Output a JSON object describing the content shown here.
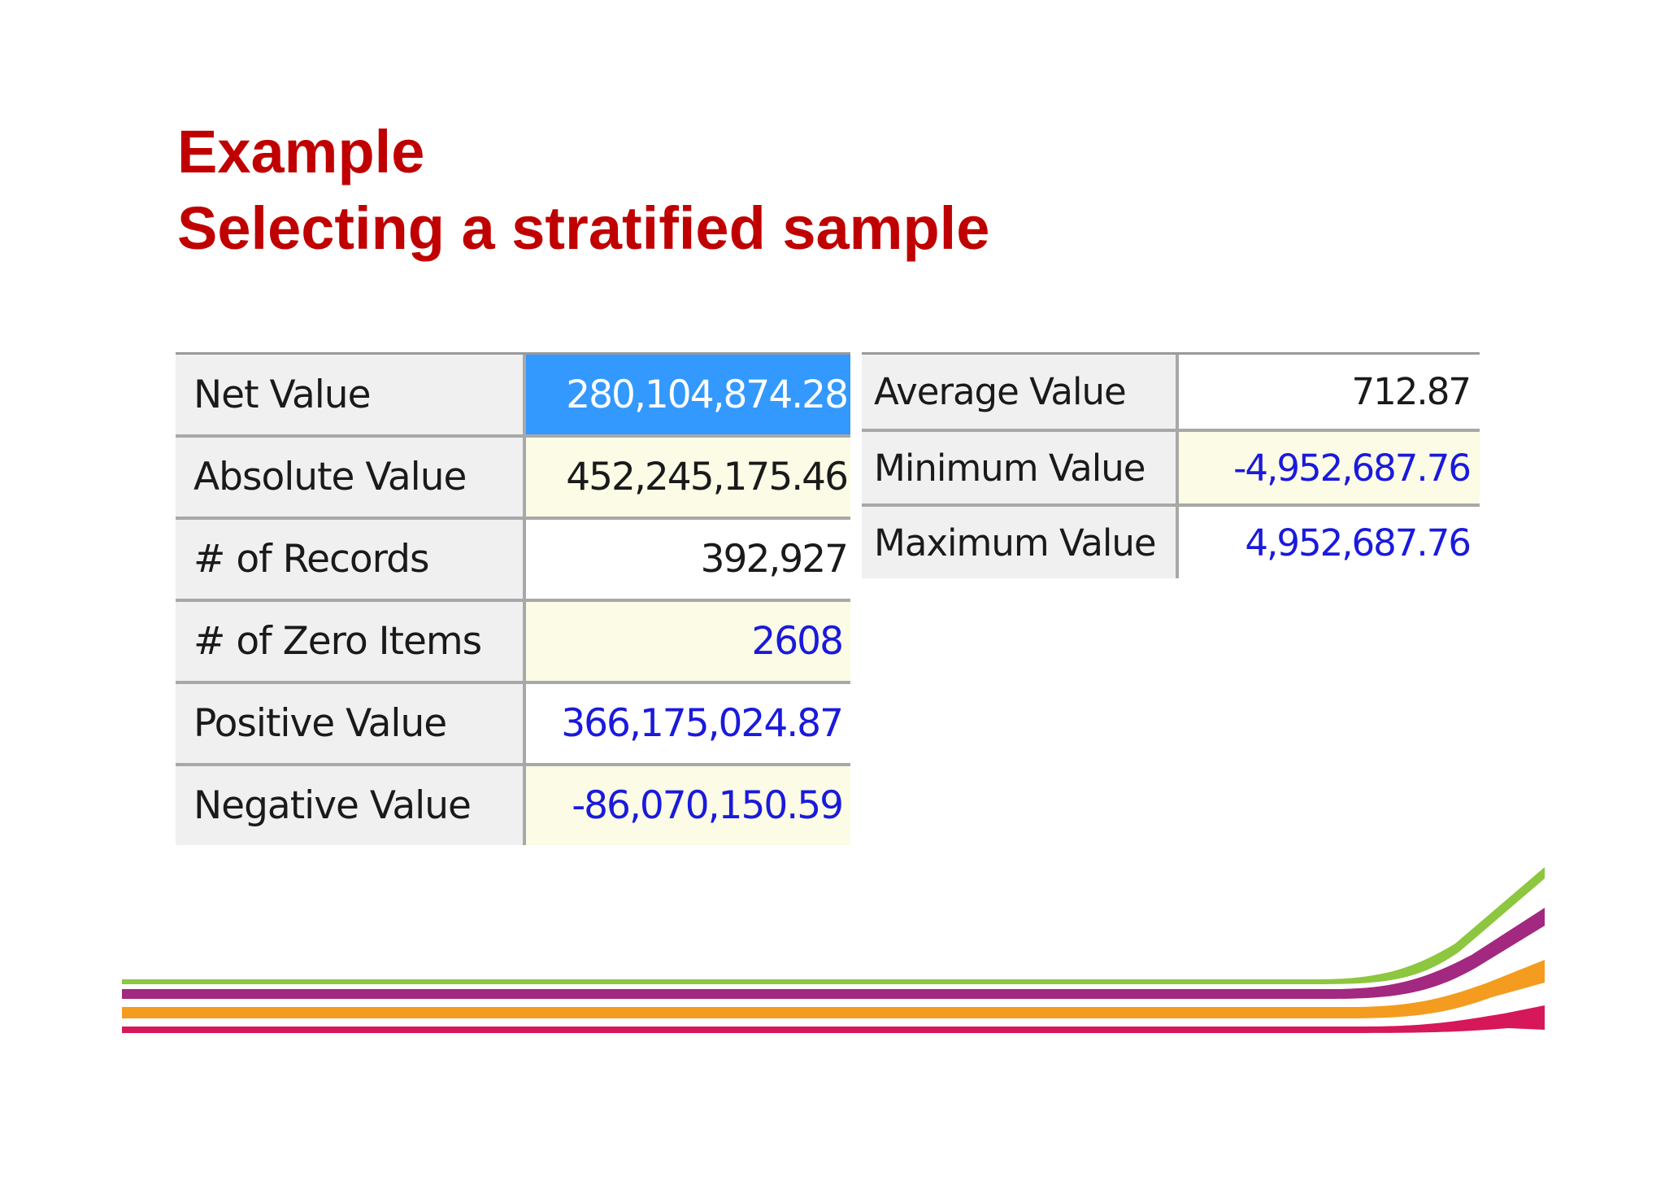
{
  "slide": {
    "title_line1": "Example",
    "title_line2": "Selecting a stratified sample"
  },
  "stats_left": [
    {
      "label": "Net Value",
      "value": "280,104,874.28",
      "state": "selected"
    },
    {
      "label": "Absolute Value",
      "value": "452,245,175.46",
      "state": "alt"
    },
    {
      "label": "# of Records",
      "value": "392,927",
      "state": "normal"
    },
    {
      "label": "# of Zero Items",
      "value": "2608",
      "state": "alt-blue"
    },
    {
      "label": "Positive Value",
      "value": "366,175,024.87",
      "state": "blue"
    },
    {
      "label": "Negative Value",
      "value": "-86,070,150.59",
      "state": "alt-blue"
    }
  ],
  "stats_right": [
    {
      "label": "Average Value",
      "value": "712.87",
      "state": "normal"
    },
    {
      "label": "Minimum Value",
      "value": "-4,952,687.76",
      "state": "alt-blue"
    },
    {
      "label": "Maximum Value",
      "value": "4,952,687.76",
      "state": "blue"
    }
  ],
  "colors": {
    "title": "#c00000",
    "selected_cell": "#3399ff",
    "alt_row": "#fbfbe6",
    "blue_text": "#1a1adc",
    "stripe_green": "#8dc63f",
    "stripe_purple": "#a3287f",
    "stripe_orange": "#f39c1f",
    "stripe_red": "#d6175a"
  }
}
